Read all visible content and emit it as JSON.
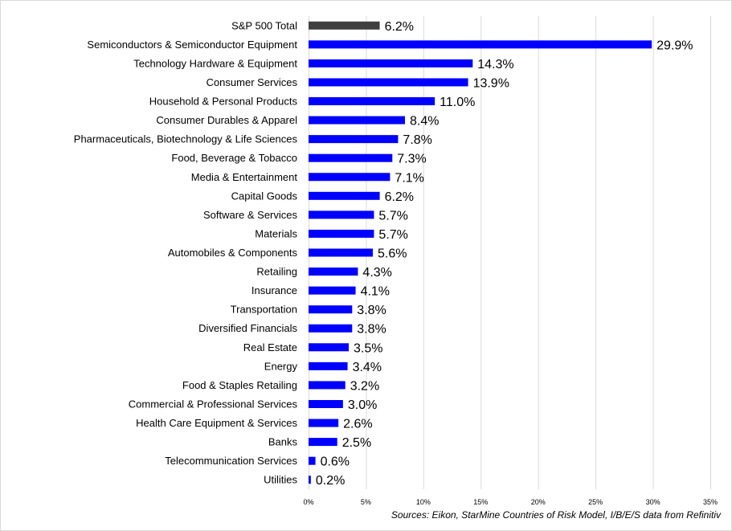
{
  "chart_data": {
    "type": "bar",
    "orientation": "horizontal",
    "categories": [
      "S&P 500 Total",
      "Semiconductors & Semiconductor Equipment",
      "Technology Hardware & Equipment",
      "Consumer Services",
      "Household & Personal Products",
      "Consumer Durables & Apparel",
      "Pharmaceuticals, Biotechnology & Life Sciences",
      "Food, Beverage & Tobacco",
      "Media & Entertainment",
      "Capital Goods",
      "Software & Services",
      "Materials",
      "Automobiles & Components",
      "Retailing",
      "Insurance",
      "Transportation",
      "Diversified Financials",
      "Real Estate",
      "Energy",
      "Food & Staples Retailing",
      "Commercial  & Professional Services",
      "Health Care Equipment & Services",
      "Banks",
      "Telecommunication Services",
      "Utilities"
    ],
    "values": [
      6.2,
      29.9,
      14.3,
      13.9,
      11.0,
      8.4,
      7.8,
      7.3,
      7.1,
      6.2,
      5.7,
      5.7,
      5.6,
      4.3,
      4.1,
      3.8,
      3.8,
      3.5,
      3.4,
      3.2,
      3.0,
      2.6,
      2.5,
      0.6,
      0.2
    ],
    "value_labels": [
      "6.2%",
      "29.9%",
      "14.3%",
      "13.9%",
      "11.0%",
      "8.4%",
      "7.8%",
      "7.3%",
      "7.1%",
      "6.2%",
      "5.7%",
      "5.7%",
      "5.6%",
      "4.3%",
      "4.1%",
      "3.8%",
      "3.8%",
      "3.5%",
      "3.4%",
      "3.2%",
      "3.0%",
      "2.6%",
      "2.5%",
      "0.6%",
      "0.2%"
    ],
    "xlim": [
      0,
      35
    ],
    "xticks": [
      0,
      5,
      10,
      15,
      20,
      25,
      30,
      35
    ],
    "xtick_labels": [
      "0%",
      "5%",
      "10%",
      "15%",
      "20%",
      "25%",
      "30%",
      "35%"
    ],
    "grid": "vertical",
    "colors": {
      "total": "#404040",
      "sector": "#0000ff",
      "grid": "#d9d9d9"
    },
    "title": "",
    "xlabel": "",
    "ylabel": ""
  },
  "source_note": "Sources: Eikon, StarMine Countries of Risk Model, I/B/E/S data from Refinitiv"
}
